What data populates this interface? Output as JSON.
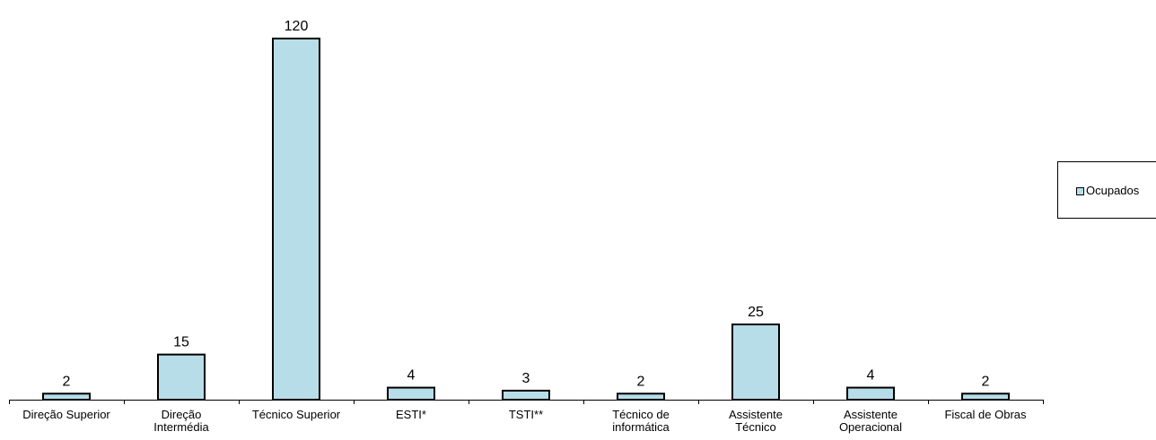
{
  "chart_data": {
    "type": "bar",
    "categories": [
      [
        "Direção Superior"
      ],
      [
        "Direção",
        "Intermédia"
      ],
      [
        "Técnico Superior"
      ],
      [
        "ESTI*"
      ],
      [
        "TSTI**"
      ],
      [
        "Técnico de",
        "informática"
      ],
      [
        "Assistente",
        "Técnico"
      ],
      [
        "Assistente",
        "Operacional"
      ],
      [
        "Fiscal de Obras"
      ]
    ],
    "series": [
      {
        "name": "Ocupados",
        "values": [
          2,
          15,
          120,
          4,
          3,
          2,
          25,
          4,
          2
        ],
        "color": "#b7dde8"
      }
    ],
    "ylim": [
      0,
      130
    ],
    "grid": false,
    "legend": "right",
    "data_labels": true
  }
}
